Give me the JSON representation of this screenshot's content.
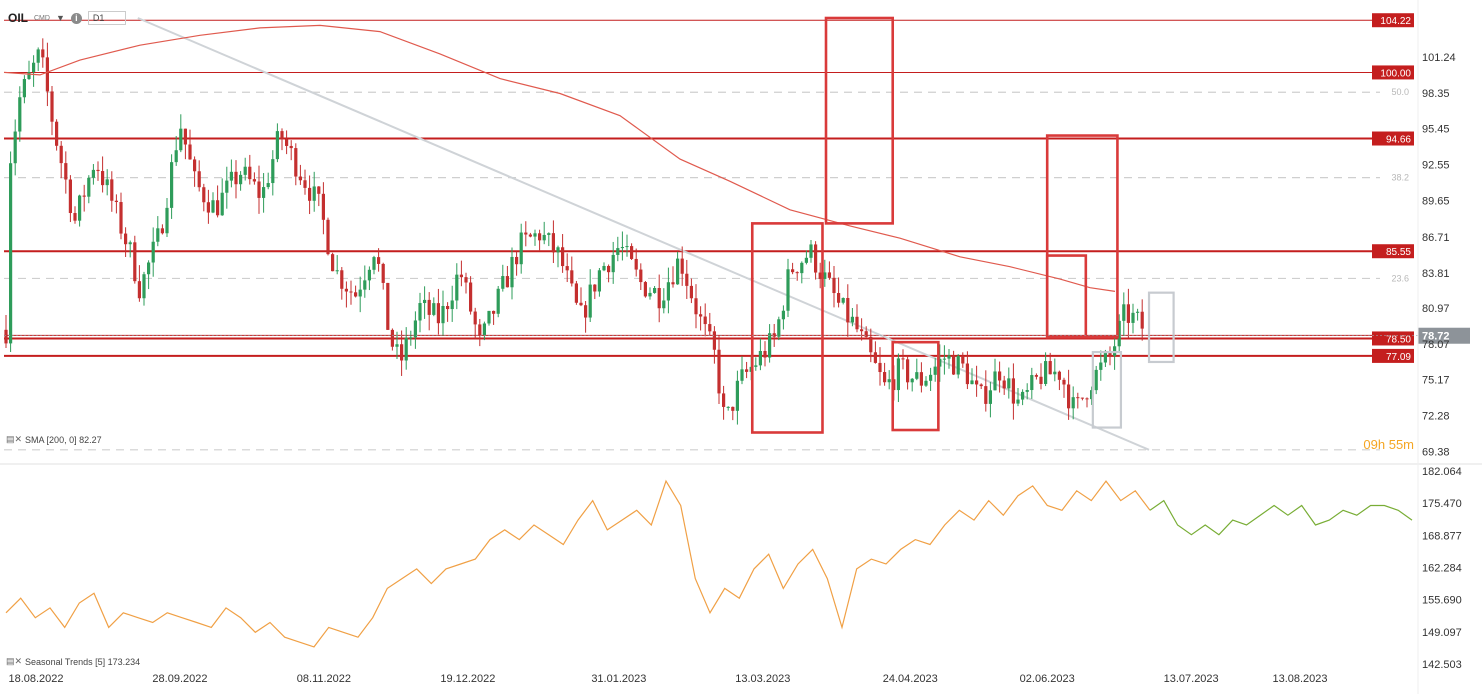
{
  "header": {
    "symbol": "OIL",
    "symbol_suffix": "CMD",
    "timeframe": "D1",
    "info_glyph": "i"
  },
  "timer": "09h 55m",
  "indicators": {
    "sma_label": "SMA [200, 0] 82.27",
    "seasonal_label": "Seasonal Trends [5] 173.234"
  },
  "colors": {
    "up_candle": "#2e9c5a",
    "down_candle": "#c42f2f",
    "resistance": "#c41e1e",
    "box": "#d93a3a",
    "sma": "#e05a4e",
    "trendline": "#cfd3d7",
    "fib": "#cfcfcf",
    "seasonal_orange": "#f0a045",
    "seasonal_green": "#78ad35",
    "current_price": "#8d9399"
  },
  "chart_data": {
    "type": "candlestick",
    "panels": [
      {
        "name": "price",
        "y_ticks": [
          "101.24",
          "98.35",
          "95.45",
          "92.55",
          "89.65",
          "86.71",
          "83.81",
          "80.97",
          "78.07",
          "75.17",
          "72.28",
          "69.38"
        ],
        "ylim": [
          69.0,
          104.4
        ],
        "x_ticks": [
          "18.08.2022",
          "28.09.2022",
          "08.11.2022",
          "19.12.2022",
          "31.01.2023",
          "13.03.2023",
          "24.04.2023",
          "02.06.2023",
          "13.07.2023",
          "13.08.2023"
        ],
        "horizontal_levels": [
          {
            "value": 104.22,
            "label": "104.22"
          },
          {
            "value": 100.0,
            "label": "100.00"
          },
          {
            "value": 94.66,
            "label": "94.66"
          },
          {
            "value": 85.55,
            "label": "85.55"
          },
          {
            "value": 78.5,
            "label": "78.50"
          },
          {
            "value": 77.09,
            "label": "77.09"
          }
        ],
        "fib_levels": [
          {
            "value": 98.4,
            "label": "50.0"
          },
          {
            "value": 91.5,
            "label": "38.2"
          },
          {
            "value": 83.35,
            "label": "23.6"
          },
          {
            "value": 69.5,
            "label": ""
          }
        ],
        "current_price": {
          "value": 78.72,
          "label": "78.72"
        },
        "trendline": {
          "from": [
            "16.09.2022",
            104.4
          ],
          "to": [
            "01.07.2023",
            69.5
          ]
        },
        "sma_200": {
          "last": 82.27
        },
        "highlight_boxes": [
          {
            "from": "10.03.2023",
            "to": "30.03.2023",
            "low": 70.9,
            "high": 87.8
          },
          {
            "from": "31.03.2023",
            "to": "19.04.2023",
            "low": 87.8,
            "high": 104.4
          },
          {
            "from": "19.04.2023",
            "to": "02.05.2023",
            "low": 71.1,
            "high": 78.2
          },
          {
            "from": "02.06.2023",
            "to": "13.06.2023",
            "low": 78.6,
            "high": 85.2
          },
          {
            "from": "02.06.2023",
            "to": "22.06.2023",
            "low": 78.6,
            "high": 94.9
          },
          {
            "from": "15.06.2023",
            "to": "23.06.2023",
            "low": 71.3,
            "high": 77.4,
            "style": "grey"
          },
          {
            "from": "01.07.2023",
            "to": "08.07.2023",
            "low": 76.6,
            "high": 82.2,
            "style": "grey"
          }
        ],
        "ohlc_samples": [
          {
            "date": "18.08.2022",
            "close": 96.0
          },
          {
            "date": "28.09.2022",
            "close": 91.0
          },
          {
            "date": "08.11.2022",
            "close": 91.5
          },
          {
            "date": "19.12.2022",
            "close": 80.5
          },
          {
            "date": "31.01.2023",
            "close": 84.5
          },
          {
            "date": "13.03.2023",
            "close": 74.5
          },
          {
            "date": "24.04.2023",
            "close": 76.5
          },
          {
            "date": "02.06.2023",
            "close": 76.0
          },
          {
            "date": "13.07.2023",
            "close": 80.5
          },
          {
            "date": "18.07.2023",
            "close": 78.72
          }
        ]
      },
      {
        "name": "seasonal_trends",
        "y_ticks": [
          "182.064",
          "175.470",
          "168.877",
          "162.284",
          "155.690",
          "149.097",
          "142.503"
        ],
        "ylim": [
          142.503,
          182.064
        ],
        "series": [
          {
            "color": "orange",
            "values": [
              153,
              156,
              152,
              154,
              150,
              155,
              157,
              150,
              153,
              152,
              151,
              153,
              152,
              151,
              150,
              154,
              152,
              149,
              151,
              148,
              147,
              146,
              150,
              149,
              148,
              152,
              158,
              160,
              162,
              159,
              162,
              163,
              164,
              168,
              170,
              168,
              171,
              169,
              167,
              172,
              176,
              170,
              172,
              174,
              171,
              180,
              175,
              160,
              153,
              158,
              156,
              162,
              165,
              158,
              163,
              166,
              160,
              150,
              162,
              164,
              163,
              166,
              168,
              167,
              171,
              174,
              172,
              176,
              173,
              177,
              179,
              175,
              174,
              178,
              176,
              180,
              176,
              178,
              174
            ]
          },
          {
            "color": "green",
            "values": [
              174,
              176,
              171,
              169,
              171,
              169,
              172,
              171,
              173,
              175,
              173,
              175,
              171,
              172,
              174,
              173,
              175,
              175,
              174,
              172
            ]
          }
        ]
      }
    ]
  }
}
